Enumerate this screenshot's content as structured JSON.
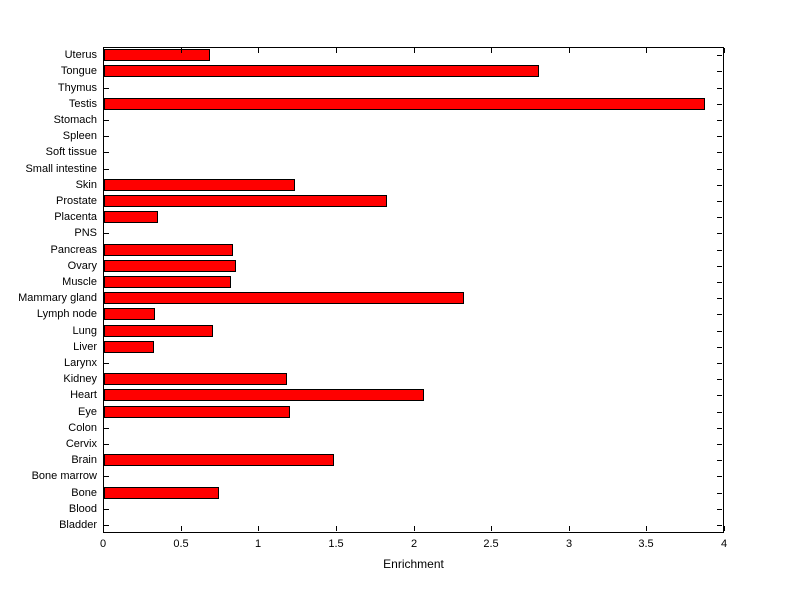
{
  "figure": {
    "background": "#ffffff"
  },
  "chart_data": {
    "type": "bar",
    "orientation": "horizontal",
    "title": "",
    "xlabel": "Enrichment",
    "ylabel": "",
    "xlim": [
      0,
      4
    ],
    "xticks": [
      0,
      0.5,
      1,
      1.5,
      2,
      2.5,
      3,
      3.5,
      4
    ],
    "grid": false,
    "legend": null,
    "bar_color": "#ff0000",
    "bar_edge_color": "#000000",
    "categories": [
      "Uterus",
      "Tongue",
      "Thymus",
      "Testis",
      "Stomach",
      "Spleen",
      "Soft tissue",
      "Small intestine",
      "Skin",
      "Prostate",
      "Placenta",
      "PNS",
      "Pancreas",
      "Ovary",
      "Muscle",
      "Mammary gland",
      "Lymph node",
      "Lung",
      "Liver",
      "Larynx",
      "Kidney",
      "Heart",
      "Eye",
      "Colon",
      "Cervix",
      "Brain",
      "Bone marrow",
      "Bone",
      "Blood",
      "Bladder"
    ],
    "values": [
      0.68,
      2.8,
      0,
      3.87,
      0,
      0,
      0,
      0,
      1.23,
      1.82,
      0.35,
      0,
      0.83,
      0.85,
      0.82,
      2.32,
      0.33,
      0.7,
      0.32,
      0,
      1.18,
      2.06,
      1.2,
      0,
      0,
      1.48,
      0,
      0.74,
      0,
      0
    ]
  }
}
